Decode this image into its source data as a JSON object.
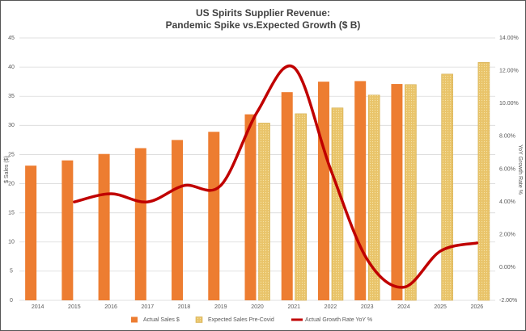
{
  "chart_data": {
    "type": "bar",
    "title": "US Spirits Supplier Revenue:",
    "subtitle": "Pandemic Spike vs.Expected Growth ($ B)",
    "y_label": "$ Sales ($)",
    "y2_label": "YoY Growth Rate %",
    "categories": [
      "2014",
      "2015",
      "2016",
      "2017",
      "2018",
      "2019",
      "2020",
      "2021",
      "2022",
      "2023",
      "2024",
      "2025",
      "2026"
    ],
    "series": [
      {
        "name": "Actual Sales $",
        "type": "bar",
        "color": "#ed7d31",
        "values": [
          23.1,
          24.0,
          25.1,
          26.1,
          27.5,
          28.9,
          31.9,
          35.7,
          37.5,
          37.6,
          37.1,
          null,
          null
        ]
      },
      {
        "name": "Expected Sales Pre-Covid",
        "type": "bar",
        "color": "#e9c46a",
        "values": [
          null,
          null,
          null,
          null,
          null,
          null,
          30.4,
          32.0,
          33.0,
          35.2,
          37.0,
          38.8,
          40.8
        ]
      },
      {
        "name": "Actual Growth Rate YoY %",
        "type": "line",
        "axis": "y2",
        "color": "#c00000",
        "values": [
          null,
          4.0,
          4.5,
          4.0,
          5.0,
          5.0,
          9.5,
          12.2,
          6.0,
          0.5,
          -1.2,
          1.0,
          1.5
        ]
      }
    ],
    "ylim": [
      0,
      45
    ],
    "yticks": [
      0,
      5,
      10,
      15,
      20,
      25,
      30,
      35,
      40,
      45
    ],
    "y2lim": [
      -2,
      14
    ],
    "y2ticks": [
      {
        "value": -2,
        "label": "-2.00%"
      },
      {
        "value": 0,
        "label": "0.00%"
      },
      {
        "value": 2,
        "label": "2.00%"
      },
      {
        "value": 4,
        "label": "4.00%"
      },
      {
        "value": 6,
        "label": "6.00%"
      },
      {
        "value": 8,
        "label": "8.00%"
      },
      {
        "value": 10,
        "label": "10.00%"
      },
      {
        "value": 12,
        "label": "12.00%"
      },
      {
        "value": 14,
        "label": "14.00%"
      }
    ],
    "grid": true,
    "legend": "bottom"
  }
}
